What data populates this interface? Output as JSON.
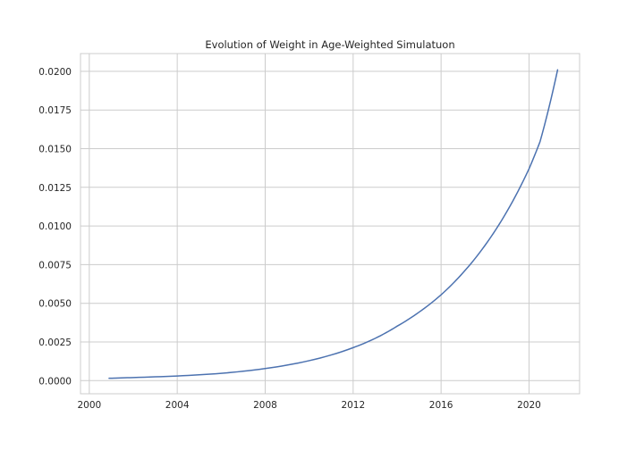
{
  "chart_data": {
    "type": "line",
    "title": "Evolution of Weight in Age-Weighted Simulatuon",
    "xlabel": "",
    "ylabel": "",
    "xlim": [
      1999.6,
      2022.3
    ],
    "ylim": [
      -0.00085,
      0.02115
    ],
    "x_ticks": [
      2000,
      2004,
      2008,
      2012,
      2016,
      2020
    ],
    "y_ticks": [
      0.0,
      0.0025,
      0.005,
      0.0075,
      0.01,
      0.0125,
      0.015,
      0.0175,
      0.02
    ],
    "y_tick_labels": [
      "0.0000",
      "0.0025",
      "0.0050",
      "0.0075",
      "0.0100",
      "0.0125",
      "0.0150",
      "0.0175",
      "0.0200"
    ],
    "grid": true,
    "legend": "none",
    "series": [
      {
        "color": "#4c72b0",
        "x": [
          2000.9,
          2002.0,
          2004.0,
          2006.0,
          2008.0,
          2010.0,
          2012.0,
          2013.0,
          2014.0,
          2015.0,
          2016.0,
          2017.0,
          2018.0,
          2019.0,
          2020.0,
          2020.5,
          2021.3
        ],
        "y": [
          0.00015,
          0.0002,
          0.0003,
          0.00047,
          0.00078,
          0.00129,
          0.00213,
          0.00273,
          0.00352,
          0.00443,
          0.00555,
          0.00698,
          0.00875,
          0.01095,
          0.0137,
          0.01545,
          0.0201
        ]
      }
    ]
  }
}
